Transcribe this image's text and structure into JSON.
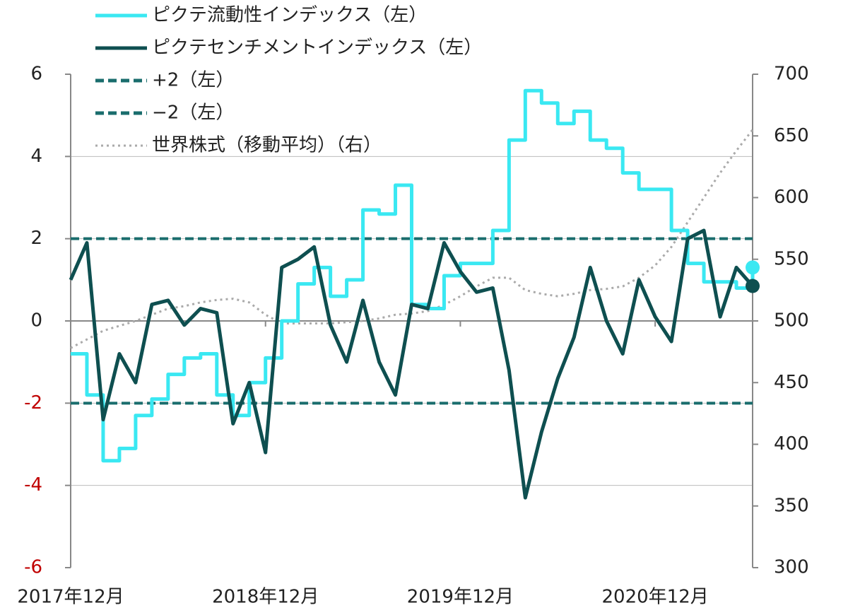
{
  "chart_data": {
    "type": "line",
    "x": [
      "2017-12",
      "2018-01",
      "2018-02",
      "2018-03",
      "2018-04",
      "2018-05",
      "2018-06",
      "2018-07",
      "2018-08",
      "2018-09",
      "2018-10",
      "2018-11",
      "2018-12",
      "2019-01",
      "2019-02",
      "2019-03",
      "2019-04",
      "2019-05",
      "2019-06",
      "2019-07",
      "2019-08",
      "2019-09",
      "2019-10",
      "2019-11",
      "2019-12",
      "2020-01",
      "2020-02",
      "2020-03",
      "2020-04",
      "2020-05",
      "2020-06",
      "2020-07",
      "2020-08",
      "2020-09",
      "2020-10",
      "2020-11",
      "2020-12",
      "2021-01",
      "2021-02",
      "2021-03",
      "2021-04",
      "2021-05",
      "2021-06"
    ],
    "series": [
      {
        "name": "ピクテ流動性インデックス（左）",
        "color": "#3ae8f2",
        "step": true,
        "values": [
          -0.8,
          -1.8,
          -3.4,
          -3.1,
          -2.3,
          -1.9,
          -1.3,
          -0.9,
          -0.8,
          -1.8,
          -2.3,
          -1.5,
          -0.9,
          0,
          0.9,
          1.3,
          0.6,
          1.0,
          2.7,
          2.6,
          3.3,
          0.4,
          0.3,
          1.1,
          1.4,
          1.4,
          2.2,
          4.4,
          5.6,
          5.3,
          4.8,
          5.1,
          4.4,
          4.2,
          3.6,
          3.2,
          3.2,
          2.2,
          1.4,
          0.95,
          0.95,
          0.8,
          1.3
        ]
      },
      {
        "name": "ピクテセンチメントインデックス（左）",
        "color": "#0e4f50",
        "values": [
          1.0,
          1.9,
          -2.4,
          -0.8,
          -1.5,
          0.4,
          0.5,
          -0.1,
          0.3,
          0.2,
          -2.5,
          -1.5,
          -3.2,
          1.3,
          1.5,
          1.8,
          -0.1,
          -1.0,
          0.5,
          -1.0,
          -1.8,
          0.4,
          0.3,
          1.9,
          1.2,
          0.7,
          0.8,
          -1.2,
          -4.3,
          -2.7,
          -1.4,
          -0.4,
          1.3,
          0.0,
          -0.8,
          1.0,
          0.1,
          -0.5,
          2.0,
          2.2,
          0.1,
          1.3,
          0.85
        ]
      },
      {
        "name": "世界株式（移動平均）（右）",
        "color": "#aaaaaa",
        "axis": "y2",
        "dotted": true,
        "values": [
          478,
          485,
          492,
          496,
          500,
          505,
          510,
          512,
          515,
          517,
          518,
          515,
          505,
          498,
          498,
          498,
          498,
          499,
          500,
          502,
          505,
          506,
          508,
          513,
          520,
          528,
          535,
          535,
          525,
          522,
          520,
          522,
          525,
          526,
          528,
          535,
          545,
          560,
          580,
          600,
          620,
          638,
          655
        ]
      }
    ],
    "hlines": [
      {
        "name": "+2（左）",
        "value": 2,
        "color": "#1a6d6d"
      },
      {
        "name": "−2（左）",
        "value": -2,
        "color": "#1a6d6d"
      }
    ],
    "end_markers": true,
    "ylim": [
      -6,
      6
    ],
    "yticks": [
      -6,
      -4,
      -2,
      0,
      2,
      4,
      6
    ],
    "negative_tick_color": "#c00000",
    "y2lim": [
      300,
      700
    ],
    "y2ticks": [
      300,
      350,
      400,
      450,
      500,
      550,
      600,
      650,
      700
    ],
    "xticks": [
      {
        "value": "2017-12",
        "label": "2017年12月"
      },
      {
        "value": "2018-12",
        "label": "2018年12月"
      },
      {
        "value": "2019-12",
        "label": "2019年12月"
      },
      {
        "value": "2020-12",
        "label": "2020年12月"
      }
    ],
    "grid": true,
    "legend": "top-left"
  }
}
